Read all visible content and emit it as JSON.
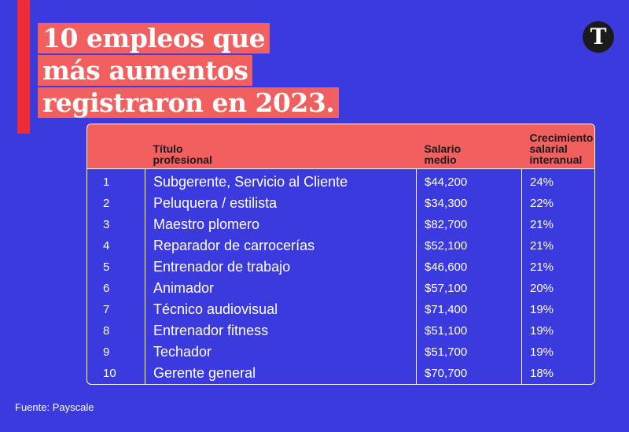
{
  "title_lines": [
    "10 empleos que",
    "más aumentos",
    "registraron en 2023."
  ],
  "logo_letter": "T",
  "source": "Fuente: Payscale",
  "colors": {
    "background": "#3a3adf",
    "accent_red": "#ef2b33",
    "header_salmon": "#f25f5f",
    "logo": "#1b1b1b"
  },
  "chart_data": {
    "type": "table",
    "columns": [
      "",
      "Título profesional",
      "Salario medio",
      "Crecimiento salarial interanual"
    ],
    "header_lines": [
      [
        ""
      ],
      [
        "Título",
        "profesional"
      ],
      [
        "Salario",
        "medio"
      ],
      [
        "Crecimiento",
        "salarial",
        "interanual"
      ]
    ],
    "rows": [
      [
        "1",
        "Subgerente, Servicio al Cliente",
        "$44,200",
        "24%"
      ],
      [
        "2",
        "Peluquera / estilista",
        "$34,300",
        "22%"
      ],
      [
        "3",
        "Maestro plomero",
        "$82,700",
        "21%"
      ],
      [
        "4",
        "Reparador de carrocerías",
        "$52,100",
        "21%"
      ],
      [
        "5",
        "Entrenador de trabajo",
        "$46,600",
        "21%"
      ],
      [
        "6",
        "Animador",
        "$57,100",
        "20%"
      ],
      [
        "7",
        "Técnico audiovisual",
        "$71,400",
        "19%"
      ],
      [
        "8",
        "Entrenador fitness",
        "$51,100",
        "19%"
      ],
      [
        "9",
        "Techador",
        "$51,700",
        "19%"
      ],
      [
        "10",
        "Gerente general",
        "$70,700",
        "18%"
      ]
    ]
  }
}
